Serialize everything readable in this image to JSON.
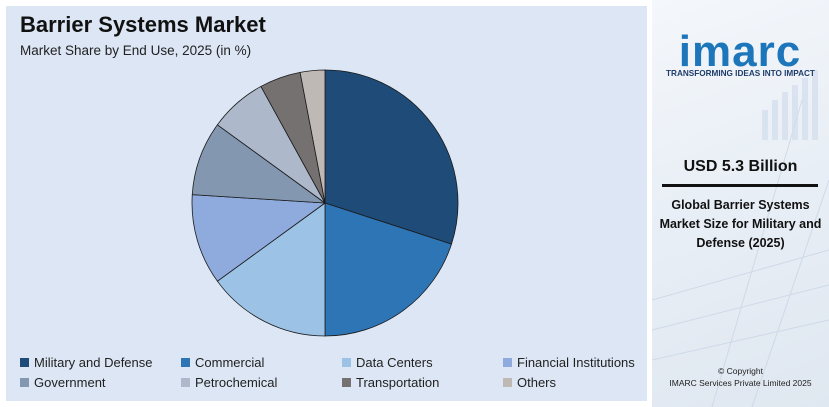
{
  "chart_data": {
    "type": "pie",
    "title": "Barrier Systems Market",
    "subtitle": "Market Share by End Use, 2025 (in %)",
    "categories": [
      "Military and Defense",
      "Commercial",
      "Data Centers",
      "Financial Institutions",
      "Government",
      "Petrochemical",
      "Transportation",
      "Others"
    ],
    "values": [
      30,
      20,
      15,
      11,
      9,
      7,
      5,
      3
    ],
    "colors": [
      "#1e4b77",
      "#2e75b6",
      "#9cc3e6",
      "#8faadc",
      "#8497b0",
      "#adb9ca",
      "#767171",
      "#bfb9b6"
    ],
    "legend_position": "bottom"
  },
  "side": {
    "logo": "imarc",
    "tagline": "TRANSFORMING IDEAS INTO IMPACT",
    "value": "USD 5.3 Billion",
    "description": "Global Barrier Systems Market Size for Military and Defense (2025)",
    "copyright_line1": "© Copyright",
    "copyright_line2": "IMARC Services Private Limited 2025"
  }
}
